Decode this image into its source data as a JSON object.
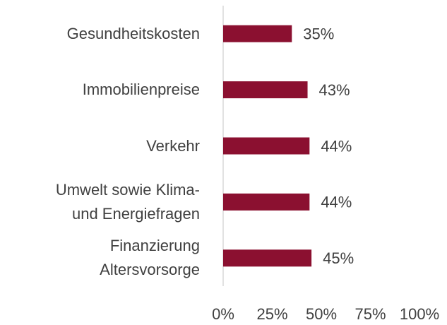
{
  "chart_data": {
    "type": "bar",
    "orientation": "horizontal",
    "categories": [
      "Gesundheitskosten",
      "Immobilienpreise",
      "Verkehr",
      "Umwelt sowie Klima-\nund Energiefragen",
      "Finanzierung \nAltersvorsorge"
    ],
    "values": [
      35,
      43,
      44,
      44,
      45
    ],
    "value_labels": [
      "35%",
      "43%",
      "44%",
      "44%",
      "45%"
    ],
    "color": "#8b1030",
    "xlim": [
      0,
      100
    ],
    "xticks": [
      {
        "value": 0,
        "label": "0%"
      },
      {
        "value": 25,
        "label": "25%"
      },
      {
        "value": 50,
        "label": "50%"
      },
      {
        "value": 75,
        "label": "75%"
      },
      {
        "value": 100,
        "label": "100%"
      }
    ],
    "grid": false
  }
}
